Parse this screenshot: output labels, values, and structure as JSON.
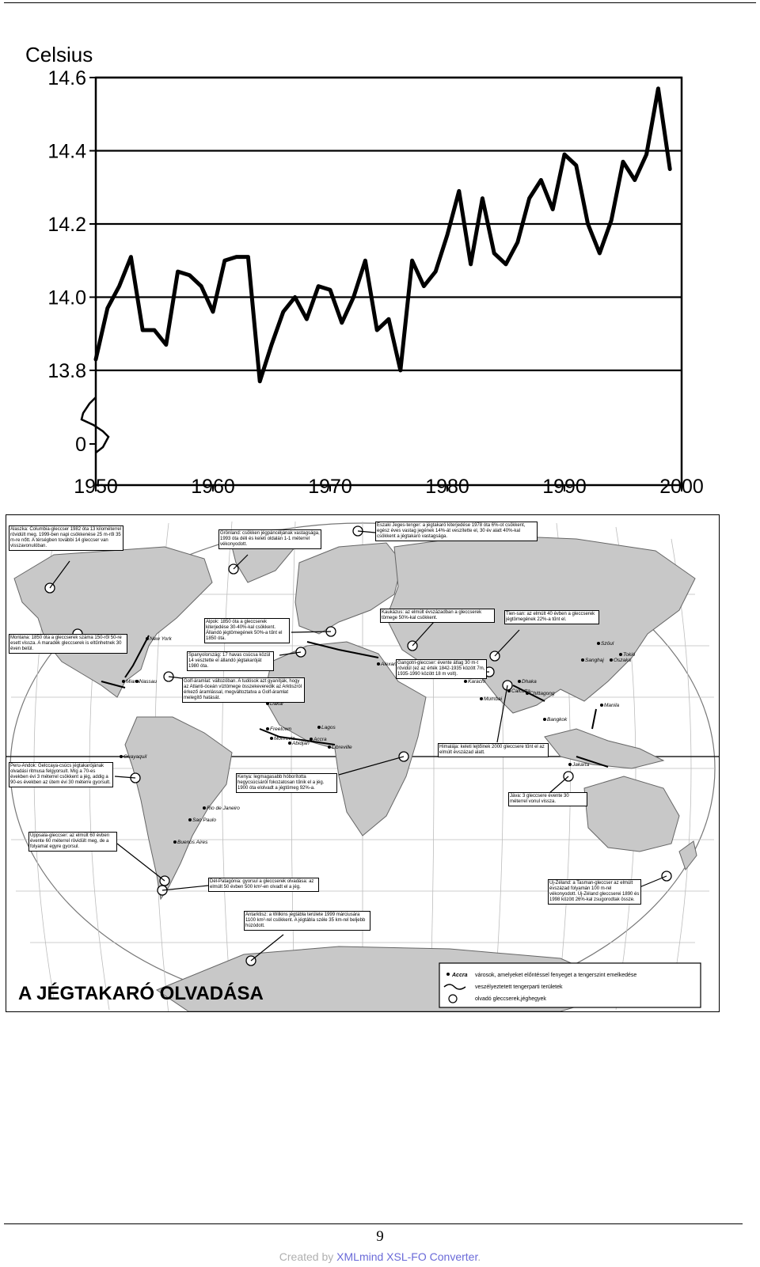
{
  "chart_data": {
    "type": "line",
    "ylabel": "Celsius",
    "x": [
      1950,
      1951,
      1952,
      1953,
      1954,
      1955,
      1956,
      1957,
      1958,
      1959,
      1960,
      1961,
      1962,
      1963,
      1964,
      1965,
      1966,
      1967,
      1968,
      1969,
      1970,
      1971,
      1972,
      1973,
      1974,
      1975,
      1976,
      1977,
      1978,
      1979,
      1980,
      1981,
      1982,
      1983,
      1984,
      1985,
      1986,
      1987,
      1988,
      1989,
      1990,
      1991,
      1992,
      1993,
      1994,
      1995,
      1996,
      1997,
      1998,
      1999
    ],
    "series": [
      {
        "values": [
          13.83,
          13.97,
          14.03,
          14.11,
          13.91,
          13.91,
          13.87,
          14.07,
          14.06,
          14.03,
          13.96,
          14.1,
          14.11,
          14.11,
          13.77,
          13.87,
          13.96,
          14.0,
          13.94,
          14.03,
          14.02,
          13.93,
          14.0,
          14.1,
          13.91,
          13.94,
          13.8,
          14.1,
          14.03,
          14.07,
          14.17,
          14.29,
          14.09,
          14.27,
          14.12,
          14.09,
          14.15,
          14.27,
          14.32,
          14.24,
          14.39,
          14.36,
          14.2,
          14.12,
          14.21,
          14.37,
          14.32,
          14.39,
          14.57,
          14.35
        ]
      }
    ],
    "yticks": [
      "0",
      "13.8",
      "14.0",
      "14.2",
      "14.4",
      "14.6"
    ],
    "xticks": [
      "1950",
      "1960",
      "1970",
      "1980",
      "1990",
      "2000"
    ],
    "xlim": [
      1950,
      2000
    ],
    "ylim": [
      13.8,
      14.6
    ],
    "axis_break": "0",
    "grid": "horizontal"
  },
  "map": {
    "title": "A JÉGTAKARÓ OLVADÁSA",
    "legend": [
      {
        "symbol": "Accra",
        "text": "városok, amelyeket előntéssel fenyeget a tengerszint emelkedése"
      },
      {
        "text": "veszélyeztetett tengerparti területek"
      },
      {
        "text": "olvadó gleccserek,jéghegyek"
      }
    ],
    "notes": {
      "alaszka": "Alaszka: Columbia-gleccser 1982 óta 13 kilométerrel rövidült meg. 1999-ben napi csökkenése 25 m-ről 35 m-re nőtt. A térségben további 14 gleccser van visszavonulóban.",
      "gronland": "Grönland: csökken jégpáncéljának vastagsága, 1993 óta déli és keleti oldalán 1-1 méterrel vékonyodott.",
      "eszaki": "Északi Jeges-tenger: a jégtakaró kiterjedése 1978 óta 6%-ot csökkent, egész éves vastag jegének 14%-át veszítette el, 30 év alatt 40%-kal csökkent a jégtakaró vastagsága.",
      "kaukazus": "Kaukázus: az elmúlt évszázadban a gleccserek tömege 50%-kal csökkent.",
      "tienshan": "Tien-san: az elmúlt 40 évben a gleccserek jégtömegének 22%-a tűnt el.",
      "alpok": "Alpok: 1850 óta a gleccserek kiterjedése 30-40%-kal csökkent. Állandó jégtömegének 50%-a tűnt el 1850 óta.",
      "montana": "Montana: 1850 óta a gleccserek száma 150-ről 50-re esett vissza. A maradék gleccserek is eltűnhetnek 30 éven belül.",
      "spanyol": "Spanyolország: 17 havas csúcsa közül 14 vesztette el állandó jégtakaróját 1980 óta.",
      "golf": "Golf-áramlat: változóban. A tudósok azt gyanítják, hogy az Atlanti-óceán víztömege összekeveredik az Arktiszról érkező áramlással, megváltoztatva a Golf-áramlat melegítő hatását.",
      "gangotri": "Gangotri-gleccser: évente átlag 30 m-t rövidül (ez az érték 1842-1935 között 7m, 1935-1990 között 18 m volt).",
      "himalaja": "Himalája: keleti lejtőinek 2000 gleccsere tűnt el az elmúlt évszázad alatt.",
      "peru": "Peru-Andok: Gelccaya-csúcs jégtakarójának olvadási ritmusa felgyorsult. Míg a 70-es években évi 3 méterrel csökkent a jég, addig a 90-es években az ütem évi 30 méterre gyorsult.",
      "kenya": "Kenya: legmagasabb hóborította hegycsúcsáról fokozatosan tűnik el a jég. 1900 óta elolvadt a jégtömeg 92%-a.",
      "java": "Jáva: 3 gleccsere évente 30 méterrel vonul vissza.",
      "uppsala": "Uppsala-gleccser: az elmúlt 60 évben évente 60 méterrel rövidült meg, de a folyamat egyre gyorsul.",
      "delpatagonia": "Dél-Patagónia: gyorsul a gleccserek olvadása: az elmúlt 50 évben 500 km²-en olvadt el a jég.",
      "ujzeland": "Új-Zéland: a Tasman-gleccser az elmúlt évszázad folyamán 100 m-rel vékonyodott. Új-Zéland gleccserei 1890 és 1998 között 26%-kal zsugorodtak össze.",
      "antarktisz": "Antarktisz: a Wilkins jégtábla területe 1999 márciusára 1100 km²-rel csökkent. A jégtábla széle 35 km-rel beljebb húzódott."
    },
    "cities": [
      {
        "name": "New York"
      },
      {
        "name": "Miami"
      },
      {
        "name": "Nassau"
      },
      {
        "name": "Dakar"
      },
      {
        "name": "Freetown"
      },
      {
        "name": "Monrovia"
      },
      {
        "name": "Abidjan"
      },
      {
        "name": "Accra"
      },
      {
        "name": "Lagos"
      },
      {
        "name": "Libreville"
      },
      {
        "name": "Alexandria"
      },
      {
        "name": "Karachi"
      },
      {
        "name": "Mumbai"
      },
      {
        "name": "Calcutta"
      },
      {
        "name": "Dhaka"
      },
      {
        "name": "Chittagong"
      },
      {
        "name": "Bangkok"
      },
      {
        "name": "Manila"
      },
      {
        "name": "Jakarta"
      },
      {
        "name": "Sanghaj"
      },
      {
        "name": "Szöul"
      },
      {
        "name": "Tokió"
      },
      {
        "name": "Oszaka"
      },
      {
        "name": "Guayaquil"
      },
      {
        "name": "Rio de Janeiro"
      },
      {
        "name": "Sao Paulo"
      },
      {
        "name": "Buenos Aires"
      }
    ]
  },
  "page": {
    "number": "9",
    "footer_prefix": "Created by ",
    "footer_link": "XMLmind XSL-FO Converter",
    "footer_suffix": "."
  }
}
